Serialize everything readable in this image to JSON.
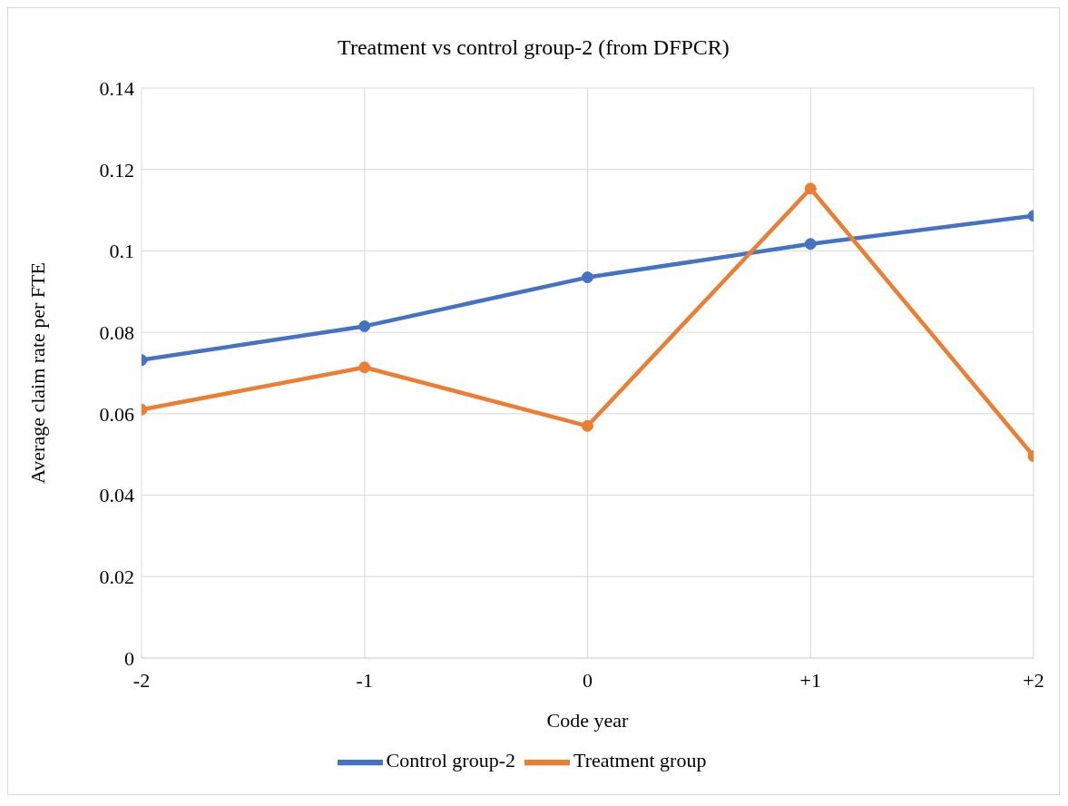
{
  "chart_data": {
    "type": "line",
    "title": "Treatment vs control group-2 (from DFPCR)",
    "xlabel": "Code year",
    "ylabel": "Average claim rate per FTE",
    "categories": [
      "-2",
      "-1",
      "0",
      "+1",
      "+2"
    ],
    "series": [
      {
        "name": "Control group-2",
        "color": "#4472c4",
        "values": [
          0.0732,
          0.0815,
          0.0935,
          0.1017,
          0.1086
        ]
      },
      {
        "name": "Treatment group",
        "color": "#ed7d31",
        "values": [
          0.061,
          0.0714,
          0.057,
          0.1153,
          0.0496
        ]
      }
    ],
    "ylim": [
      0,
      0.14
    ],
    "yticks": [
      0,
      0.02,
      0.04,
      0.06,
      0.08,
      0.1,
      0.12,
      0.14
    ],
    "grid": true,
    "legend": "bottom",
    "marker": "circle",
    "line_style": "solid"
  }
}
